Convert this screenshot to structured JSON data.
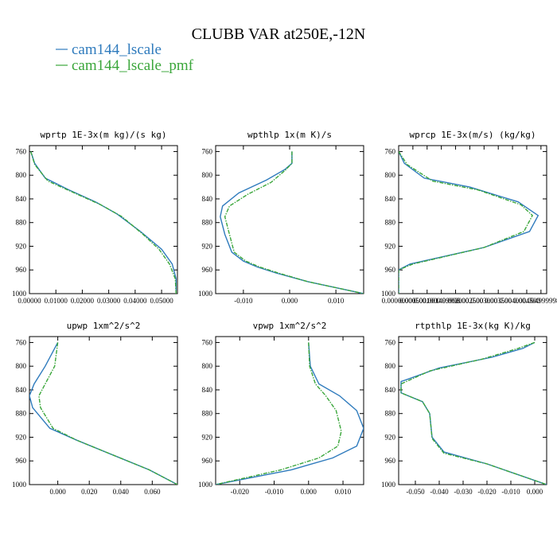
{
  "title": "CLUBB VAR at250E,-12N",
  "legend": [
    {
      "name": "cam144_lscale",
      "color": "#2f7bbd"
    },
    {
      "name": "cam144_lscale_pmf",
      "color": "#3aa63a"
    }
  ],
  "chart_data": [
    {
      "type": "line",
      "title": "wprtp  1E-3x(m kg)/(s kg)",
      "ylim": [
        1000,
        750
      ],
      "xlim": [
        0,
        0.056
      ],
      "yticks": [
        760,
        800,
        840,
        880,
        920,
        960,
        1000
      ],
      "xticks": [
        0,
        0.01,
        0.02,
        0.03,
        0.04,
        0.05
      ],
      "xtick_labels": [
        "0.00000",
        "0.01000",
        "0.02000",
        "0.03000",
        "0.04000",
        "0.05000"
      ],
      "series": [
        {
          "name": "cam144_lscale",
          "x": [
            0.0005,
            0.002,
            0.006,
            0.015,
            0.025,
            0.033,
            0.042,
            0.05,
            0.054,
            0.0555,
            0.0555
          ],
          "y": [
            760,
            780,
            805,
            825,
            845,
            865,
            895,
            925,
            950,
            975,
            1000
          ]
        },
        {
          "name": "cam144_lscale_pmf",
          "x": [
            0.0005,
            0.002,
            0.007,
            0.017,
            0.027,
            0.035,
            0.043,
            0.049,
            0.053,
            0.0552,
            0.0555
          ],
          "y": [
            760,
            782,
            810,
            830,
            850,
            870,
            900,
            925,
            950,
            975,
            1000
          ]
        }
      ]
    },
    {
      "type": "line",
      "title": "wpthlp  1x(m K)/s",
      "ylim": [
        1000,
        750
      ],
      "xlim": [
        -0.016,
        0.016
      ],
      "yticks": [
        760,
        800,
        840,
        880,
        920,
        960,
        1000
      ],
      "xticks": [
        -0.01,
        0.0,
        0.01
      ],
      "xtick_labels": [
        "-0.010",
        "0.000",
        "0.010"
      ],
      "series": [
        {
          "name": "cam144_lscale",
          "x": [
            0.0005,
            0.0005,
            -0.001,
            -0.005,
            -0.011,
            -0.0145,
            -0.015,
            -0.014,
            -0.0125,
            -0.01,
            -0.007,
            -0.003,
            0.004,
            0.016
          ],
          "y": [
            760,
            780,
            790,
            808,
            830,
            852,
            870,
            900,
            930,
            945,
            955,
            965,
            980,
            1000
          ]
        },
        {
          "name": "cam144_lscale_pmf",
          "x": [
            0.0005,
            0.0005,
            -0.001,
            -0.004,
            -0.009,
            -0.013,
            -0.014,
            -0.013,
            -0.012,
            -0.0095,
            -0.0065,
            -0.0025,
            0.004,
            0.016
          ],
          "y": [
            760,
            780,
            792,
            812,
            832,
            852,
            870,
            900,
            930,
            945,
            955,
            965,
            980,
            1000
          ]
        }
      ]
    },
    {
      "type": "line",
      "title": "wprcp  1E-3x(m/s) (kg/kg)",
      "ylim": [
        1000,
        750
      ],
      "xlim": [
        0,
        0.0052
      ],
      "yticks": [
        760,
        800,
        840,
        880,
        920,
        960,
        1000
      ],
      "xticks": [
        0,
        0.0005,
        0.001,
        0.0015,
        0.002,
        0.0025,
        0.003,
        0.0035,
        0.004,
        0.0045,
        0.005
      ],
      "xtick_labels": [
        "0.00000000",
        "0.000500",
        "0.001000",
        "0.001499998",
        "0.002000",
        "0.002500",
        "0.003000",
        "0.003500",
        "0.004000",
        "0.004500",
        "0.004999998"
      ],
      "series": [
        {
          "name": "cam144_lscale",
          "x": [
            0.0,
            0.0002,
            0.0009,
            0.0025,
            0.0042,
            0.0049,
            0.0046,
            0.003,
            0.0004,
            0.0,
            0.0
          ],
          "y": [
            760,
            780,
            805,
            820,
            845,
            868,
            895,
            922,
            950,
            960,
            1000
          ]
        },
        {
          "name": "cam144_lscale_pmf",
          "x": [
            0.0,
            0.0003,
            0.0012,
            0.0028,
            0.0043,
            0.0047,
            0.0044,
            0.003,
            0.0005,
            0.0,
            0.0
          ],
          "y": [
            760,
            782,
            810,
            825,
            850,
            868,
            895,
            922,
            950,
            960,
            1000
          ]
        }
      ]
    },
    {
      "type": "line",
      "title": "upwp  1xm^2/s^2",
      "ylim": [
        1000,
        750
      ],
      "xlim": [
        -0.018,
        0.076
      ],
      "yticks": [
        760,
        800,
        840,
        880,
        920,
        960,
        1000
      ],
      "xticks": [
        0.0,
        0.02,
        0.04,
        0.06
      ],
      "xtick_labels": [
        "0.000",
        "0.020",
        "0.040",
        "0.060"
      ],
      "series": [
        {
          "name": "cam144_lscale",
          "x": [
            0.0,
            -0.008,
            -0.015,
            -0.018,
            -0.016,
            -0.005,
            0.012,
            0.035,
            0.058,
            0.076
          ],
          "y": [
            760,
            800,
            830,
            850,
            870,
            905,
            925,
            950,
            975,
            1000
          ]
        },
        {
          "name": "cam144_lscale_pmf",
          "x": [
            0.0,
            -0.002,
            -0.008,
            -0.012,
            -0.011,
            -0.003,
            0.012,
            0.035,
            0.058,
            0.076
          ],
          "y": [
            760,
            800,
            830,
            850,
            870,
            905,
            925,
            950,
            975,
            1000
          ]
        }
      ]
    },
    {
      "type": "line",
      "title": "vpwp  1xm^2/s^2",
      "ylim": [
        1000,
        750
      ],
      "xlim": [
        -0.027,
        0.016
      ],
      "yticks": [
        760,
        800,
        840,
        880,
        920,
        960,
        1000
      ],
      "xticks": [
        -0.02,
        -0.01,
        0.0,
        0.01
      ],
      "xtick_labels": [
        "-0.020",
        "-0.010",
        "0.000",
        "0.010"
      ],
      "series": [
        {
          "name": "cam144_lscale",
          "x": [
            0.0,
            0.0005,
            0.003,
            0.009,
            0.014,
            0.016,
            0.014,
            0.007,
            -0.005,
            -0.027
          ],
          "y": [
            760,
            800,
            830,
            850,
            875,
            905,
            935,
            955,
            975,
            1000
          ]
        },
        {
          "name": "cam144_lscale_pmf",
          "x": [
            0.0,
            0.0003,
            0.002,
            0.005,
            0.008,
            0.0095,
            0.0085,
            0.003,
            -0.008,
            -0.027
          ],
          "y": [
            760,
            800,
            830,
            850,
            875,
            910,
            935,
            955,
            975,
            1000
          ]
        }
      ]
    },
    {
      "type": "line",
      "title": "rtpthlp  1E-3x(kg K)/kg",
      "ylim": [
        1000,
        750
      ],
      "xlim": [
        -0.057,
        0.005
      ],
      "yticks": [
        760,
        800,
        840,
        880,
        920,
        960,
        1000
      ],
      "xticks": [
        -0.05,
        -0.04,
        -0.03,
        -0.02,
        -0.01,
        0.0
      ],
      "xtick_labels": [
        "-0.050",
        "-0.040",
        "-0.030",
        "-0.020",
        "-0.010",
        "0.000"
      ],
      "series": [
        {
          "name": "cam144_lscale",
          "x": [
            0.0,
            -0.005,
            -0.018,
            -0.04,
            -0.056,
            -0.056,
            -0.047,
            -0.044,
            -0.043,
            -0.038,
            -0.02,
            0.005
          ],
          "y": [
            760,
            770,
            785,
            803,
            826,
            845,
            860,
            880,
            920,
            945,
            965,
            1000
          ]
        },
        {
          "name": "cam144_lscale_pmf",
          "x": [
            0.0,
            -0.007,
            -0.022,
            -0.044,
            -0.056,
            -0.056,
            -0.047,
            -0.044,
            -0.043,
            -0.038,
            -0.02,
            0.005
          ],
          "y": [
            760,
            770,
            788,
            808,
            830,
            845,
            860,
            880,
            922,
            947,
            965,
            1000
          ]
        }
      ]
    }
  ]
}
